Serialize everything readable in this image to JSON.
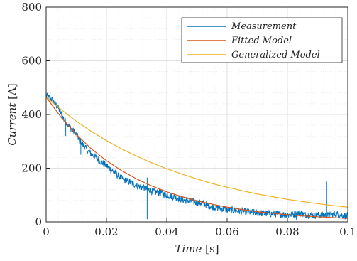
{
  "chart_data": {
    "type": "line",
    "title": "",
    "xlabel_italic": "Time",
    "xlabel_unit": "[s]",
    "ylabel_italic": "Current",
    "ylabel_unit": "[A]",
    "xlim": [
      0,
      0.1
    ],
    "ylim": [
      0,
      800
    ],
    "x_ticks": [
      0,
      0.02,
      0.04,
      0.06,
      0.08,
      0.1
    ],
    "x_tick_labels": [
      "0",
      "0.02",
      "0.04",
      "0.06",
      "0.08",
      "0.1"
    ],
    "y_ticks": [
      0,
      200,
      400,
      600,
      800
    ],
    "y_tick_labels": [
      "0",
      "200",
      "400",
      "600",
      "800"
    ],
    "grid": "on (major and minor)",
    "legend_position": "top-right",
    "series": [
      {
        "name": "Measurement",
        "color": "#0072BD",
        "x": [
          0,
          0.002,
          0.004,
          0.006,
          0.008,
          0.01,
          0.012,
          0.014,
          0.016,
          0.018,
          0.02,
          0.022,
          0.024,
          0.026,
          0.028,
          0.03,
          0.032,
          0.034,
          0.036,
          0.038,
          0.04,
          0.042,
          0.044,
          0.046,
          0.048,
          0.05,
          0.052,
          0.054,
          0.056,
          0.058,
          0.06,
          0.062,
          0.064,
          0.066,
          0.068,
          0.07,
          0.072,
          0.074,
          0.076,
          0.078,
          0.08,
          0.082,
          0.084,
          0.086,
          0.088,
          0.09,
          0.092,
          0.094,
          0.096,
          0.098,
          0.1
        ],
        "y": [
          470,
          455,
          425,
          380,
          352,
          325,
          290,
          262,
          245,
          225,
          210,
          190,
          170,
          155,
          148,
          135,
          128,
          118,
          112,
          108,
          100,
          95,
          88,
          80,
          78,
          72,
          70,
          60,
          55,
          50,
          45,
          44,
          40,
          38,
          36,
          34,
          32,
          30,
          30,
          28,
          26,
          28,
          32,
          26,
          24,
          25,
          26,
          24,
          30,
          25,
          22
        ],
        "spikes": [
          {
            "x": 0.0065,
            "y": 320
          },
          {
            "x": 0.0115,
            "y": 250
          },
          {
            "x": 0.0335,
            "y": 165
          },
          {
            "x": 0.0335,
            "y": 10
          },
          {
            "x": 0.046,
            "y": 240
          },
          {
            "x": 0.046,
            "y": 40
          },
          {
            "x": 0.093,
            "y": 150
          },
          {
            "x": 0.083,
            "y": 5
          }
        ]
      },
      {
        "name": "Fitted Model",
        "color": "#D95319",
        "x": [
          0,
          0.005,
          0.01,
          0.015,
          0.02,
          0.025,
          0.03,
          0.035,
          0.04,
          0.045,
          0.05,
          0.055,
          0.06,
          0.065,
          0.07,
          0.075,
          0.08,
          0.085,
          0.09,
          0.095,
          0.1
        ],
        "y": [
          465,
          389,
          326,
          272,
          228,
          191,
          160,
          134,
          112,
          94,
          78,
          66,
          55,
          46,
          38,
          32,
          27,
          22,
          19,
          16,
          13
        ]
      },
      {
        "name": "Generalized Model",
        "color": "#EDB120",
        "x": [
          0,
          0.005,
          0.01,
          0.015,
          0.02,
          0.025,
          0.03,
          0.035,
          0.04,
          0.045,
          0.05,
          0.055,
          0.06,
          0.065,
          0.07,
          0.075,
          0.08,
          0.085,
          0.09,
          0.095,
          0.1
        ],
        "y": [
          465,
          418,
          375,
          337,
          303,
          272,
          245,
          220,
          198,
          178,
          160,
          143,
          129,
          116,
          104,
          94,
          84,
          76,
          68,
          61,
          55
        ]
      }
    ]
  }
}
